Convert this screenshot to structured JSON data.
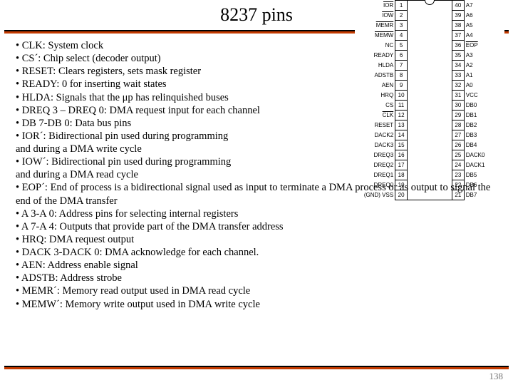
{
  "title": "8237 pins",
  "page_number": "138",
  "bullets": [
    "CLK: System clock",
    "CS´: Chip select (decoder output)",
    "RESET: Clears registers, sets mask register",
    "READY: 0 for inserting wait states",
    "HLDA: Signals that the μp has relinquished buses",
    "DREQ 3 – DREQ 0: DMA request input for each channel",
    "DB 7-DB 0: Data bus pins",
    "IOR´: Bidirectional pin used during programming"
  ],
  "cont1": "and during a DMA write cycle",
  "bullet_iow": "IOW´: Bidirectional pin used during programming",
  "cont2": "and during a DMA read cycle",
  "bullets2": [
    "EOP´: End of process is a bidirectional signal used as input to terminate a DMA process or as output to signal the end of the DMA transfer",
    "A 3-A 0: Address pins for selecting internal registers",
    "A 7-A 4: Outputs that provide part of the DMA transfer address",
    "HRQ: DMA request output",
    "DACK 3-DACK 0: DMA acknowledge for each channel.",
    "AEN: Address enable signal",
    "ADSTB: Address strobe",
    "MEMR´: Memory read output used in DMA read cycle",
    "MEMW´: Memory write output used in DMA write cycle"
  ],
  "chip": {
    "left_labels": [
      "IOR",
      "IOW",
      "MEMR",
      "MEMW",
      "NC",
      "READY",
      "HLDA",
      "ADSTB",
      "AEN",
      "HRQ",
      "CS",
      "CLK",
      "RESET",
      "DACK2",
      "DACK3",
      "DREQ3",
      "DREQ2",
      "DREQ1",
      "DREQ0",
      "(GND) VSS"
    ],
    "left_pins": [
      "1",
      "2",
      "3",
      "4",
      "5",
      "6",
      "7",
      "8",
      "9",
      "10",
      "11",
      "12",
      "13",
      "14",
      "15",
      "16",
      "17",
      "18",
      "19",
      "20"
    ],
    "right_pins": [
      "40",
      "39",
      "38",
      "37",
      "36",
      "35",
      "34",
      "33",
      "32",
      "31",
      "30",
      "29",
      "28",
      "27",
      "26",
      "25",
      "24",
      "23",
      "22",
      "21"
    ],
    "right_labels": [
      "A7",
      "A6",
      "A5",
      "A4",
      "EOP",
      "A3",
      "A2",
      "A1",
      "A0",
      "VCC",
      "DB0",
      "DB1",
      "DB2",
      "DB3",
      "DB4",
      "DACK0",
      "DACK1",
      "DB5",
      "DB6",
      "DB7"
    ],
    "overline_left": [
      0,
      1,
      2,
      3,
      11
    ],
    "overline_right": [
      4
    ]
  }
}
